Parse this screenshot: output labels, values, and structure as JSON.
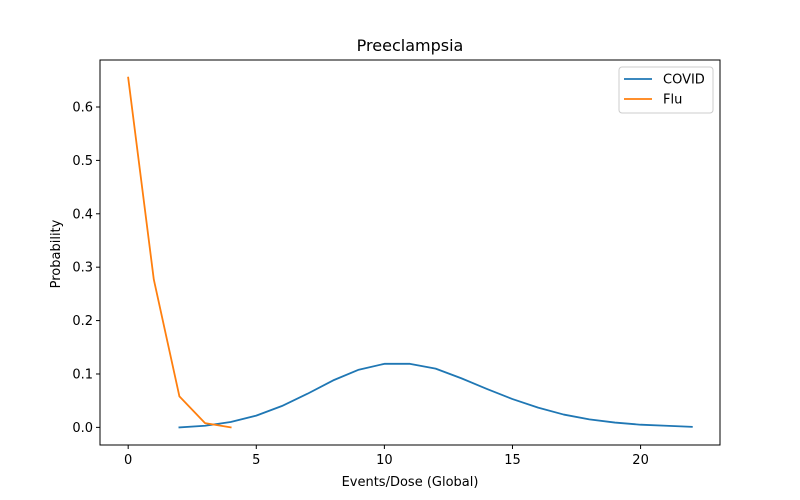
{
  "chart_data": {
    "type": "line",
    "title": "Preeclampsia",
    "xlabel": "Events/Dose (Global)",
    "ylabel": "Probability",
    "xlim": [
      -1.1,
      23.1
    ],
    "ylim": [
      -0.033,
      0.688
    ],
    "xticks": [
      0,
      5,
      10,
      15,
      20
    ],
    "yticks": [
      0.0,
      0.1,
      0.2,
      0.3,
      0.4,
      0.5,
      0.6
    ],
    "xtick_labels": [
      "0",
      "5",
      "10",
      "15",
      "20"
    ],
    "ytick_labels": [
      "0.0",
      "0.1",
      "0.2",
      "0.3",
      "0.4",
      "0.5",
      "0.6"
    ],
    "grid": false,
    "legend_position": "top-right",
    "series": [
      {
        "name": "COVID",
        "color": "#1f77b4",
        "x": [
          2,
          3,
          4,
          5,
          6,
          7,
          8,
          9,
          10,
          11,
          12,
          13,
          14,
          15,
          16,
          17,
          18,
          19,
          20,
          21,
          22
        ],
        "y": [
          0.0,
          0.003,
          0.01,
          0.022,
          0.04,
          0.063,
          0.088,
          0.108,
          0.119,
          0.119,
          0.11,
          0.092,
          0.072,
          0.053,
          0.037,
          0.024,
          0.015,
          0.009,
          0.005,
          0.003,
          0.001
        ]
      },
      {
        "name": "Flu",
        "color": "#ff7f0e",
        "x": [
          0,
          1,
          2,
          3,
          4
        ],
        "y": [
          0.655,
          0.277,
          0.058,
          0.008,
          0.0
        ]
      }
    ]
  }
}
